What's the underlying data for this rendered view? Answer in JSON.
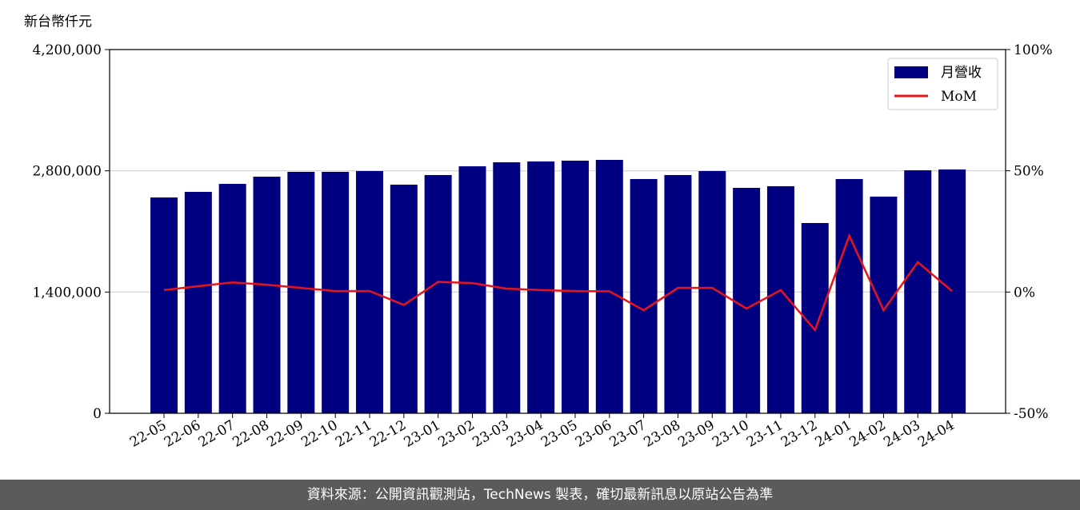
{
  "chart_data": {
    "type": "bar-line",
    "y_label": "新台幣仟元",
    "source": "資料來源：公開資訊觀測站，TechNews 製表，確切最新訊息以原站公告為準",
    "categories": [
      "22-05",
      "22-06",
      "22-07",
      "22-08",
      "22-09",
      "22-10",
      "22-11",
      "22-12",
      "23-01",
      "23-02",
      "23-03",
      "23-04",
      "23-05",
      "23-06",
      "23-07",
      "23-08",
      "23-09",
      "23-10",
      "23-11",
      "23-12",
      "24-01",
      "24-02",
      "24-03",
      "24-04"
    ],
    "series": [
      {
        "name": "月營收",
        "color": "#000080",
        "type": "bar",
        "values": [
          2492000,
          2557000,
          2649000,
          2732000,
          2788000,
          2788000,
          2797000,
          2640000,
          2751000,
          2852000,
          2898000,
          2908000,
          2917000,
          2926000,
          2705000,
          2751000,
          2797000,
          2603000,
          2622000,
          2197000,
          2705000,
          2502000,
          2806000,
          2815000
        ]
      },
      {
        "name": "MoM",
        "color": "#e8141c",
        "type": "line",
        "axis": "y2",
        "values": [
          0.8,
          2.4,
          4,
          3,
          1.7,
          0.4,
          0.4,
          -5.3,
          4.2,
          3.7,
          1.4,
          0.8,
          0.4,
          0.3,
          -7.5,
          1.7,
          1.7,
          -6.8,
          0.8,
          -15.7,
          23.2,
          -7.5,
          12.3,
          0.4
        ]
      }
    ],
    "ylim": [
      0,
      4200000
    ],
    "yticks": [
      0,
      {
        "value": 1400000,
        "label": "1,400,000"
      },
      {
        "value": 2800000,
        "label": "2,800,000"
      },
      {
        "value": 4200000,
        "label": "4,200,000"
      }
    ],
    "y2lim": [
      -50,
      100
    ],
    "y2ticks": [
      {
        "value": -50,
        "label": "-50%"
      },
      {
        "value": 0,
        "label": "0%"
      },
      {
        "value": 50,
        "label": "50%"
      },
      {
        "value": 100,
        "label": "100%"
      }
    ],
    "grid": true,
    "legend": "upper right"
  }
}
